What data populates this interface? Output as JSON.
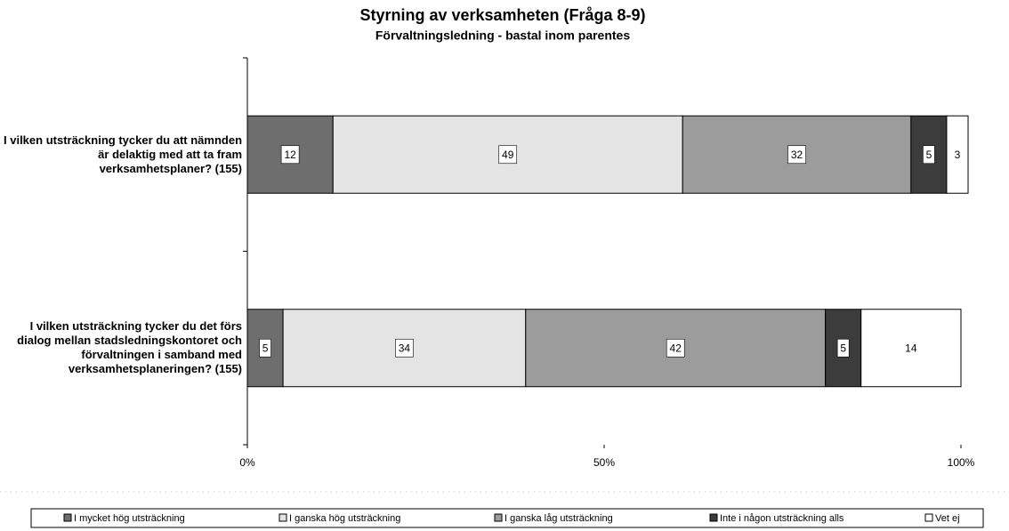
{
  "chart_data": {
    "type": "stacked-bar-horizontal",
    "title": "Styrning av verksamheten (Fråga 8-9)",
    "subtitle": "Förvaltningsledning - bastal inom parentes",
    "categories": [
      "I vilken utsträckning tycker du att nämnden är delaktig med att ta fram verksamhetsplaner? (155)",
      "I vilken utsträckning tycker du det förs dialog mellan stadsledningskontoret och förvaltningen i samband med verksamhetsplaneringen? (155)"
    ],
    "series": [
      {
        "name": "I mycket hög utsträckning",
        "color": "#6e6e6e",
        "values": [
          12,
          5
        ]
      },
      {
        "name": "I ganska hög utsträckning",
        "color": "#e4e4e4",
        "values": [
          49,
          34
        ]
      },
      {
        "name": "I ganska låg utsträckning",
        "color": "#9c9c9c",
        "values": [
          32,
          42
        ]
      },
      {
        "name": "Inte i någon utsträckning alls",
        "color": "#3c3c3c",
        "values": [
          5,
          5
        ]
      },
      {
        "name": "Vet ej",
        "color": "#ffffff",
        "values": [
          3,
          14
        ]
      }
    ],
    "xlim": [
      0,
      100
    ],
    "xticks": [
      {
        "value": 0,
        "label": "0%"
      },
      {
        "value": 50,
        "label": "50%"
      },
      {
        "value": 100,
        "label": "100%"
      }
    ],
    "legend": "bottom"
  }
}
